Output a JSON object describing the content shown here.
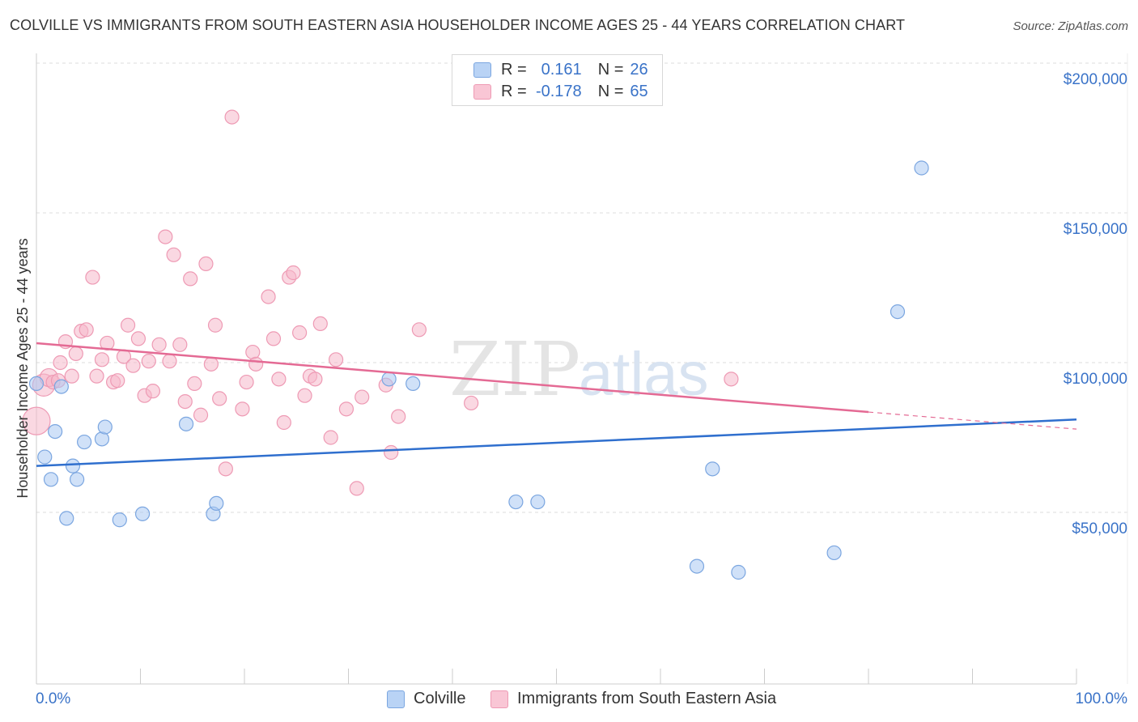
{
  "title": "COLVILLE VS IMMIGRANTS FROM SOUTH EASTERN ASIA HOUSEHOLDER INCOME AGES 25 - 44 YEARS CORRELATION CHART",
  "source": "Source: ZipAtlas.com",
  "watermark": {
    "zip": "ZIP",
    "atlas": "atlas"
  },
  "legend": {
    "r_label": "R =",
    "n_label": "N =",
    "rows": [
      {
        "r": "0.161",
        "n": "26",
        "fill": "#b9d3f5",
        "stroke": "#7ba6e0"
      },
      {
        "r": "-0.178",
        "n": "65",
        "fill": "#f9c6d5",
        "stroke": "#ee9ab4"
      }
    ]
  },
  "colors": {
    "blue_point": "#a9c9f2",
    "blue_line": "#2f6fce",
    "pink_point": "#f5b8cb",
    "pink_line": "#e46a94",
    "axis_text": "#3a73c8",
    "grid": "#dcdcdc"
  },
  "chart_data": {
    "type": "scatter",
    "title": "COLVILLE VS IMMIGRANTS FROM SOUTH EASTERN ASIA HOUSEHOLDER INCOME AGES 25 - 44 YEARS CORRELATION CHART",
    "xlabel": "",
    "ylabel": "Householder Income Ages 25 - 44 years",
    "xlim": [
      0,
      100
    ],
    "ylim": [
      0,
      210000
    ],
    "x_ticks": [
      "0.0%",
      "100.0%"
    ],
    "y_ticks": [
      {
        "value": 50000,
        "label": "$50,000"
      },
      {
        "value": 100000,
        "label": "$100,000"
      },
      {
        "value": 150000,
        "label": "$150,000"
      },
      {
        "value": 200000,
        "label": "$200,000"
      }
    ],
    "grid": true,
    "legend_position": "bottom-center",
    "series": [
      {
        "name": "Colville",
        "color": "#a9c9f2",
        "trend": {
          "x": [
            0,
            100
          ],
          "y": [
            65500,
            81000
          ]
        },
        "points": [
          {
            "x": 0.0,
            "y": 93000,
            "s": 1
          },
          {
            "x": 0.8,
            "y": 68500,
            "s": 1
          },
          {
            "x": 1.4,
            "y": 61000,
            "s": 1
          },
          {
            "x": 1.8,
            "y": 77000,
            "s": 1
          },
          {
            "x": 2.4,
            "y": 92000,
            "s": 1
          },
          {
            "x": 2.9,
            "y": 48000,
            "s": 1
          },
          {
            "x": 3.5,
            "y": 65500,
            "s": 1
          },
          {
            "x": 3.9,
            "y": 61000,
            "s": 1
          },
          {
            "x": 4.6,
            "y": 73500,
            "s": 1
          },
          {
            "x": 6.3,
            "y": 74500,
            "s": 1
          },
          {
            "x": 6.6,
            "y": 78500,
            "s": 1
          },
          {
            "x": 8.0,
            "y": 47500,
            "s": 1
          },
          {
            "x": 10.2,
            "y": 49500,
            "s": 1
          },
          {
            "x": 14.4,
            "y": 79500,
            "s": 1
          },
          {
            "x": 17.0,
            "y": 49500,
            "s": 1
          },
          {
            "x": 17.3,
            "y": 53000,
            "s": 1
          },
          {
            "x": 33.9,
            "y": 94500,
            "s": 1
          },
          {
            "x": 36.2,
            "y": 93000,
            "s": 1
          },
          {
            "x": 46.1,
            "y": 53500,
            "s": 1
          },
          {
            "x": 48.2,
            "y": 53500,
            "s": 1
          },
          {
            "x": 63.5,
            "y": 32000,
            "s": 1
          },
          {
            "x": 65.0,
            "y": 64500,
            "s": 1
          },
          {
            "x": 67.5,
            "y": 30000,
            "s": 1
          },
          {
            "x": 76.7,
            "y": 36500,
            "s": 1
          },
          {
            "x": 82.8,
            "y": 117000,
            "s": 1
          },
          {
            "x": 85.1,
            "y": 165000,
            "s": 1
          }
        ]
      },
      {
        "name": "Immigrants from South Eastern Asia",
        "color": "#f5b8cb",
        "trend": {
          "x": [
            0,
            80
          ],
          "y": [
            106500,
            83500
          ]
        },
        "trend_dashed": {
          "x": [
            80,
            100
          ],
          "y": [
            83500,
            77800
          ]
        },
        "points": [
          {
            "x": 0.0,
            "y": 80500,
            "s": 2.0
          },
          {
            "x": 0.7,
            "y": 92500,
            "s": 1.6
          },
          {
            "x": 1.2,
            "y": 95000,
            "s": 1.3
          },
          {
            "x": 1.6,
            "y": 93500,
            "s": 1
          },
          {
            "x": 2.3,
            "y": 100000,
            "s": 1
          },
          {
            "x": 2.8,
            "y": 107000,
            "s": 1
          },
          {
            "x": 3.4,
            "y": 95500,
            "s": 1
          },
          {
            "x": 3.8,
            "y": 103000,
            "s": 1
          },
          {
            "x": 4.3,
            "y": 110500,
            "s": 1
          },
          {
            "x": 4.8,
            "y": 111000,
            "s": 1
          },
          {
            "x": 5.4,
            "y": 128500,
            "s": 1
          },
          {
            "x": 5.8,
            "y": 95500,
            "s": 1
          },
          {
            "x": 6.3,
            "y": 101000,
            "s": 1
          },
          {
            "x": 6.8,
            "y": 106500,
            "s": 1
          },
          {
            "x": 7.4,
            "y": 93500,
            "s": 1
          },
          {
            "x": 7.8,
            "y": 94000,
            "s": 1
          },
          {
            "x": 8.4,
            "y": 102000,
            "s": 1
          },
          {
            "x": 8.8,
            "y": 112500,
            "s": 1
          },
          {
            "x": 9.3,
            "y": 99000,
            "s": 1
          },
          {
            "x": 9.8,
            "y": 108000,
            "s": 1
          },
          {
            "x": 10.4,
            "y": 89000,
            "s": 1
          },
          {
            "x": 10.8,
            "y": 100500,
            "s": 1
          },
          {
            "x": 11.2,
            "y": 90500,
            "s": 1
          },
          {
            "x": 11.8,
            "y": 106000,
            "s": 1
          },
          {
            "x": 12.4,
            "y": 142000,
            "s": 1
          },
          {
            "x": 12.8,
            "y": 100500,
            "s": 1
          },
          {
            "x": 13.2,
            "y": 136000,
            "s": 1
          },
          {
            "x": 13.8,
            "y": 106000,
            "s": 1
          },
          {
            "x": 14.3,
            "y": 87000,
            "s": 1
          },
          {
            "x": 14.8,
            "y": 128000,
            "s": 1
          },
          {
            "x": 15.2,
            "y": 93000,
            "s": 1
          },
          {
            "x": 15.8,
            "y": 82500,
            "s": 1
          },
          {
            "x": 16.3,
            "y": 133000,
            "s": 1
          },
          {
            "x": 16.8,
            "y": 99500,
            "s": 1
          },
          {
            "x": 17.2,
            "y": 112500,
            "s": 1
          },
          {
            "x": 17.6,
            "y": 88000,
            "s": 1
          },
          {
            "x": 18.2,
            "y": 64500,
            "s": 1
          },
          {
            "x": 18.8,
            "y": 182000,
            "s": 1
          },
          {
            "x": 19.8,
            "y": 84500,
            "s": 1
          },
          {
            "x": 20.2,
            "y": 93500,
            "s": 1
          },
          {
            "x": 20.8,
            "y": 103500,
            "s": 1
          },
          {
            "x": 21.1,
            "y": 99500,
            "s": 1
          },
          {
            "x": 22.3,
            "y": 122000,
            "s": 1
          },
          {
            "x": 22.8,
            "y": 108000,
            "s": 1
          },
          {
            "x": 23.3,
            "y": 94500,
            "s": 1
          },
          {
            "x": 23.8,
            "y": 80000,
            "s": 1
          },
          {
            "x": 24.3,
            "y": 128500,
            "s": 1
          },
          {
            "x": 24.7,
            "y": 130000,
            "s": 1
          },
          {
            "x": 25.3,
            "y": 110000,
            "s": 1
          },
          {
            "x": 25.8,
            "y": 89000,
            "s": 1
          },
          {
            "x": 26.3,
            "y": 95500,
            "s": 1
          },
          {
            "x": 26.8,
            "y": 94500,
            "s": 1
          },
          {
            "x": 27.3,
            "y": 113000,
            "s": 1
          },
          {
            "x": 28.3,
            "y": 75000,
            "s": 1
          },
          {
            "x": 28.8,
            "y": 101000,
            "s": 1
          },
          {
            "x": 29.8,
            "y": 84500,
            "s": 1
          },
          {
            "x": 30.8,
            "y": 58000,
            "s": 1
          },
          {
            "x": 31.3,
            "y": 88500,
            "s": 1
          },
          {
            "x": 33.6,
            "y": 92500,
            "s": 1
          },
          {
            "x": 34.1,
            "y": 70000,
            "s": 1
          },
          {
            "x": 34.8,
            "y": 82000,
            "s": 1
          },
          {
            "x": 36.8,
            "y": 111000,
            "s": 1
          },
          {
            "x": 41.8,
            "y": 86500,
            "s": 1
          },
          {
            "x": 66.8,
            "y": 94500,
            "s": 1
          },
          {
            "x": 2.1,
            "y": 94000,
            "s": 1
          }
        ]
      }
    ]
  },
  "bottom_legend": [
    {
      "label": "Colville",
      "fill": "#b9d3f5",
      "stroke": "#7ba6e0"
    },
    {
      "label": "Immigrants from South Eastern Asia",
      "fill": "#f9c6d5",
      "stroke": "#ee9ab4"
    }
  ]
}
